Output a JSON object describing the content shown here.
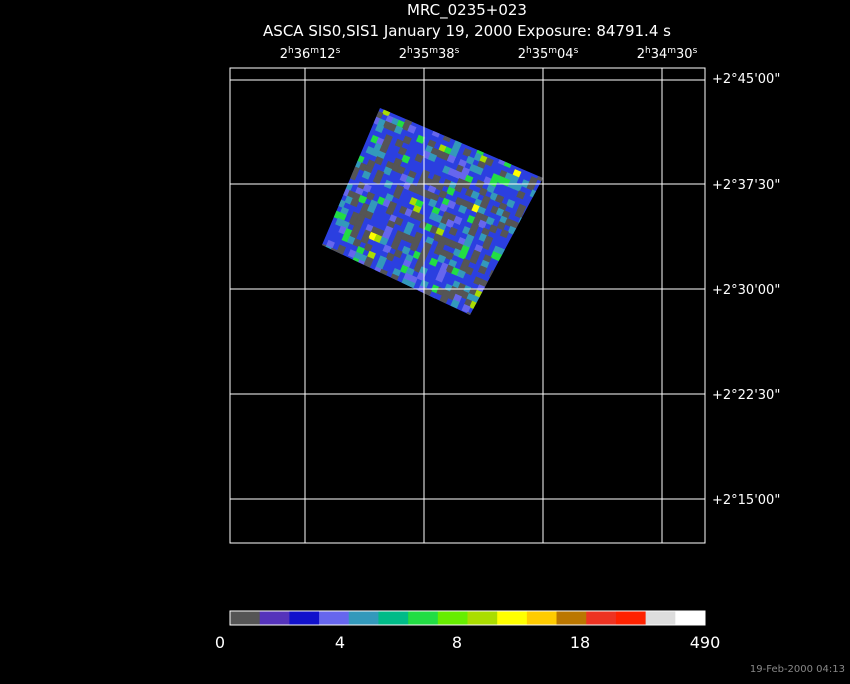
{
  "header": {
    "title": "MRC_0235+023",
    "subtitle": "ASCA SIS0,SIS1 January 19, 2000 Exposure: 84791.4 s"
  },
  "ra_labels": [
    [
      "2",
      "h",
      "36",
      "m",
      "12",
      "s"
    ],
    [
      "2",
      "h",
      "35",
      "m",
      "38",
      "s"
    ],
    [
      "2",
      "h",
      "35",
      "m",
      "04",
      "s"
    ],
    [
      "2",
      "h",
      "34",
      "m",
      "30",
      "s"
    ]
  ],
  "dec_labels": [
    "+2°45'00\"",
    "+2°37'30\"",
    "+2°30'00\"",
    "+2°22'30\"",
    "+2°15'00\""
  ],
  "colorbar": {
    "colors": [
      "#555555",
      "#5533bb",
      "#1111cc",
      "#6666ee",
      "#3399bb",
      "#00bb88",
      "#22dd44",
      "#66ee00",
      "#aadd00",
      "#ffff00",
      "#ffcc00",
      "#bb7700",
      "#ee3322",
      "#ff2200",
      "#dddddd",
      "#ffffff"
    ],
    "labels": [
      "0",
      "4",
      "8",
      "18",
      "490"
    ]
  },
  "timestamp": "19-Feb-2000 04:13"
}
